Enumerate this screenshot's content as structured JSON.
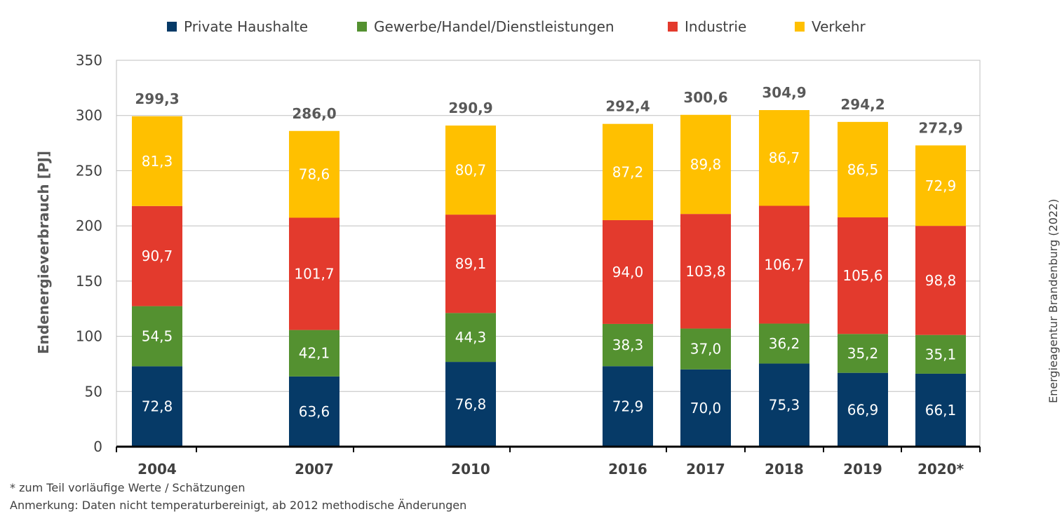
{
  "chart_data": {
    "type": "bar",
    "stacked": true,
    "categories": [
      "2004",
      "2007",
      "2010",
      "2016",
      "2017",
      "2018",
      "2019",
      "2020*"
    ],
    "series": [
      {
        "name": "Private Haushalte",
        "color": "#063a67",
        "values": [
          72.8,
          63.6,
          76.8,
          72.9,
          70.0,
          75.3,
          66.9,
          66.1
        ]
      },
      {
        "name": "Gewerbe/Handel/Dienstleistungen",
        "color": "#549130",
        "values": [
          54.5,
          42.1,
          44.3,
          38.3,
          37.0,
          36.2,
          35.2,
          35.1
        ]
      },
      {
        "name": "Industrie",
        "color": "#e33a2d",
        "values": [
          90.7,
          101.7,
          89.1,
          94.0,
          103.8,
          106.7,
          105.6,
          98.8
        ]
      },
      {
        "name": "Verkehr",
        "color": "#ffc000",
        "values": [
          81.3,
          78.6,
          80.7,
          87.2,
          89.8,
          86.7,
          86.5,
          72.9
        ]
      }
    ],
    "segment_labels": [
      [
        "72,8",
        "63,6",
        "76,8",
        "72,9",
        "70,0",
        "75,3",
        "66,9",
        "66,1"
      ],
      [
        "54,5",
        "42,1",
        "44,3",
        "38,3",
        "37,0",
        "36,2",
        "35,2",
        "35,1"
      ],
      [
        "90,7",
        "101,7",
        "89,1",
        "94,0",
        "103,8",
        "106,7",
        "105,6",
        "98,8"
      ],
      [
        "81,3",
        "78,6",
        "80,7",
        "87,2",
        "89,8",
        "86,7",
        "86,5",
        "72,9"
      ]
    ],
    "totals": [
      299.3,
      286.0,
      290.9,
      292.4,
      300.6,
      304.9,
      294.2,
      272.9
    ],
    "total_labels": [
      "299,3",
      "286,0",
      "290,9",
      "292,4",
      "300,6",
      "304,9",
      "294,2",
      "272,9"
    ],
    "ylabel": "Endenergieverbrauch [PJ]",
    "xlabel": "",
    "ylim": [
      0,
      350
    ],
    "yticks": [
      0,
      50,
      100,
      150,
      200,
      250,
      300,
      350
    ],
    "grid": true,
    "legend_position": "top"
  },
  "footnotes": {
    "note1": "* zum Teil vorläufige Werte / Schätzungen",
    "note2": "Anmerkung: Daten nicht temperaturbereinigt, ab 2012 methodische Änderungen"
  },
  "source_credit": "Energieagentur Brandenburg (2022)",
  "colors": {
    "axis_text": "#404040",
    "total_text": "#595959",
    "gridline": "#bfbfbf"
  }
}
